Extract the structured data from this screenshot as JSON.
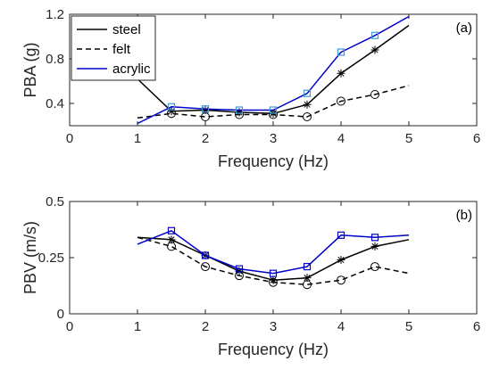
{
  "chart_data": [
    {
      "type": "line",
      "panel_label": "(a)",
      "xlabel": "Frequency (Hz)",
      "ylabel": "PBA (g)",
      "xlim": [
        0,
        6
      ],
      "ylim": [
        0.2,
        1.2
      ],
      "xticks": [
        "0",
        "1",
        "2",
        "3",
        "4",
        "5",
        "6"
      ],
      "yticks": [
        "0.4",
        "0.8",
        "1.2"
      ],
      "legend_position": "top-left",
      "series": [
        {
          "name": "steel",
          "color": "#000000",
          "line": "solid",
          "marker": "asterisk",
          "x": [
            1.0,
            1.5,
            2.0,
            2.5,
            3.0,
            3.5,
            4.0,
            4.5,
            5.0
          ],
          "y": [
            0.62,
            0.33,
            0.34,
            0.32,
            0.31,
            0.39,
            0.67,
            0.88,
            1.1
          ],
          "marker_x": [
            1.5,
            2.0,
            2.5,
            3.0,
            3.5,
            4.0,
            4.5
          ]
        },
        {
          "name": "felt",
          "color": "#000000",
          "line": "dashed",
          "marker": "circle",
          "x": [
            1.0,
            1.5,
            2.0,
            2.5,
            3.0,
            3.5,
            4.0,
            4.5,
            5.0
          ],
          "y": [
            0.27,
            0.31,
            0.28,
            0.3,
            0.3,
            0.28,
            0.42,
            0.48,
            0.56
          ],
          "marker_x": [
            1.5,
            2.0,
            2.5,
            3.0,
            3.5,
            4.0,
            4.5
          ]
        },
        {
          "name": "acrylic",
          "color": "#0000c8",
          "line": "solid",
          "marker": "square",
          "marker_color": "#3a9ad9",
          "x": [
            1.0,
            1.5,
            2.0,
            2.5,
            3.0,
            3.5,
            4.0,
            4.5,
            5.0
          ],
          "y": [
            0.22,
            0.37,
            0.35,
            0.34,
            0.34,
            0.49,
            0.86,
            1.01,
            1.18
          ],
          "marker_x": [
            1.5,
            2.0,
            2.5,
            3.0,
            3.5,
            4.0,
            4.5
          ]
        }
      ]
    },
    {
      "type": "line",
      "panel_label": "(b)",
      "xlabel": "Frequency (Hz)",
      "ylabel": "PBV (m/s)",
      "xlim": [
        0,
        6
      ],
      "ylim": [
        0,
        0.5
      ],
      "xticks": [
        "0",
        "1",
        "2",
        "3",
        "4",
        "5",
        "6"
      ],
      "yticks": [
        "0",
        "0.25",
        "0.5"
      ],
      "series": [
        {
          "name": "steel",
          "color": "#000000",
          "line": "solid",
          "marker": "asterisk",
          "x": [
            1.0,
            1.5,
            2.0,
            2.5,
            3.0,
            3.5,
            4.0,
            4.5,
            5.0
          ],
          "y": [
            0.34,
            0.33,
            0.26,
            0.19,
            0.15,
            0.16,
            0.24,
            0.3,
            0.33
          ],
          "marker_x": [
            1.5,
            2.0,
            2.5,
            3.0,
            3.5,
            4.0,
            4.5
          ]
        },
        {
          "name": "felt",
          "color": "#000000",
          "line": "dashed",
          "marker": "circle",
          "x": [
            1.0,
            1.5,
            2.0,
            2.5,
            3.0,
            3.5,
            4.0,
            4.5,
            5.0
          ],
          "y": [
            0.34,
            0.3,
            0.21,
            0.17,
            0.14,
            0.13,
            0.15,
            0.21,
            0.18
          ],
          "marker_x": [
            1.5,
            2.0,
            2.5,
            3.0,
            3.5,
            4.0,
            4.5
          ]
        },
        {
          "name": "acrylic",
          "color": "#0000c8",
          "line": "solid",
          "marker": "square",
          "marker_color": "#0000c8",
          "x": [
            1.0,
            1.5,
            2.0,
            2.5,
            3.0,
            3.5,
            4.0,
            4.5,
            5.0
          ],
          "y": [
            0.31,
            0.37,
            0.26,
            0.2,
            0.18,
            0.21,
            0.35,
            0.34,
            0.35
          ],
          "marker_x": [
            1.5,
            2.0,
            2.5,
            3.0,
            3.5,
            4.0,
            4.5
          ]
        }
      ]
    }
  ]
}
